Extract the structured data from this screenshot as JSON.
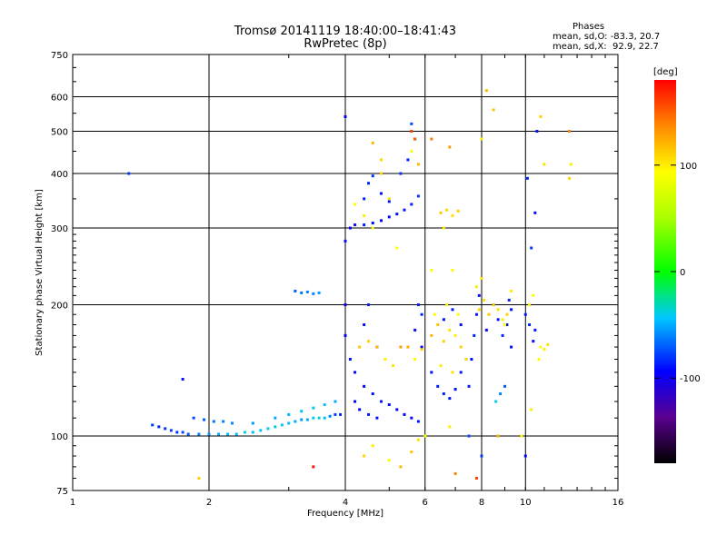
{
  "header": {
    "title": "Tromsø 20141119 18:40:00–18:41:43",
    "subtitle": "RwPretec (8p)"
  },
  "phase_stats": {
    "heading": "Phases",
    "line1": "mean, sd,O: -83.3, 20.7",
    "line2": "mean, sd,X:  92.9, 22.7"
  },
  "colorbar": {
    "unit": "[deg]",
    "ticks": [
      {
        "value": 100,
        "label": "100"
      },
      {
        "value": 0,
        "label": "0"
      },
      {
        "value": -100,
        "label": "-100"
      }
    ],
    "range": [
      -180,
      180
    ]
  },
  "chart_data": {
    "type": "scatter",
    "title": "Tromsø 20141119 18:40:00–18:41:43",
    "subtitle": "RwPretec (8p)",
    "xlabel": "Frequency [MHz]",
    "ylabel": "Stationary phase Virtual Height [km]",
    "xscale": "log",
    "yscale": "log",
    "xlim": [
      1,
      16
    ],
    "ylim": [
      75,
      750
    ],
    "xticks": [
      1,
      2,
      4,
      6,
      8,
      10,
      16
    ],
    "yticks": [
      75,
      100,
      200,
      300,
      400,
      500,
      600,
      750
    ],
    "grid": true,
    "colormap": "rainbow phase [deg]",
    "series": [
      {
        "name": "O",
        "points": [
          [
            1.5,
            106,
            -80
          ],
          [
            1.55,
            105,
            -85
          ],
          [
            1.6,
            104,
            -80
          ],
          [
            1.65,
            103,
            -78
          ],
          [
            1.7,
            102,
            -82
          ],
          [
            1.75,
            102,
            -75
          ],
          [
            1.8,
            101,
            -70
          ],
          [
            1.9,
            101,
            -60
          ],
          [
            2.0,
            101,
            -55
          ],
          [
            2.1,
            101,
            -50
          ],
          [
            2.2,
            101,
            -45
          ],
          [
            2.3,
            101,
            -45
          ],
          [
            2.4,
            102,
            -40
          ],
          [
            2.5,
            102,
            -45
          ],
          [
            2.6,
            103,
            -42
          ],
          [
            2.7,
            104,
            -38
          ],
          [
            2.8,
            105,
            -35
          ],
          [
            2.9,
            106,
            -40
          ],
          [
            3.0,
            107,
            -45
          ],
          [
            3.1,
            108,
            -50
          ],
          [
            3.2,
            109,
            -55
          ],
          [
            3.3,
            109,
            -50
          ],
          [
            3.4,
            110,
            -40
          ],
          [
            3.5,
            110,
            -35
          ],
          [
            3.6,
            110,
            -45
          ],
          [
            3.7,
            111,
            -60
          ],
          [
            3.8,
            112,
            -80
          ],
          [
            3.9,
            112,
            -85
          ],
          [
            1.85,
            110,
            -75
          ],
          [
            1.95,
            109,
            -70
          ],
          [
            2.05,
            108,
            -65
          ],
          [
            2.15,
            108,
            -60
          ],
          [
            2.25,
            107,
            -58
          ],
          [
            2.5,
            107,
            -55
          ],
          [
            2.8,
            110,
            -50
          ],
          [
            3.0,
            112,
            -48
          ],
          [
            3.2,
            114,
            -45
          ],
          [
            3.4,
            116,
            -42
          ],
          [
            3.6,
            118,
            -45
          ],
          [
            3.8,
            120,
            -50
          ],
          [
            3.1,
            215,
            -70
          ],
          [
            3.2,
            213,
            -65
          ],
          [
            3.3,
            214,
            -60
          ],
          [
            3.4,
            212,
            -60
          ],
          [
            3.5,
            213,
            -55
          ],
          [
            1.33,
            400,
            -80
          ],
          [
            1.75,
            135,
            -90
          ],
          [
            4.0,
            280,
            -90
          ],
          [
            4.1,
            300,
            -95
          ],
          [
            4.2,
            305,
            -90
          ],
          [
            4.4,
            305,
            -88
          ],
          [
            4.6,
            308,
            -92
          ],
          [
            4.8,
            312,
            -95
          ],
          [
            5.0,
            318,
            -92
          ],
          [
            5.2,
            323,
            -90
          ],
          [
            5.4,
            330,
            -88
          ],
          [
            5.6,
            340,
            -85
          ],
          [
            5.8,
            355,
            -80
          ],
          [
            4.4,
            350,
            -85
          ],
          [
            4.5,
            380,
            -85
          ],
          [
            4.6,
            395,
            -80
          ],
          [
            4.8,
            360,
            -90
          ],
          [
            5.0,
            345,
            -88
          ],
          [
            5.3,
            400,
            -82
          ],
          [
            5.5,
            430,
            -85
          ],
          [
            5.7,
            480,
            -80
          ],
          [
            5.6,
            520,
            -75
          ],
          [
            4.0,
            540,
            -95
          ],
          [
            4.0,
            200,
            -100
          ],
          [
            4.0,
            170,
            -95
          ],
          [
            4.1,
            150,
            -90
          ],
          [
            4.2,
            140,
            -92
          ],
          [
            4.4,
            130,
            -95
          ],
          [
            4.6,
            125,
            -90
          ],
          [
            4.8,
            120,
            -88
          ],
          [
            5.0,
            118,
            -90
          ],
          [
            5.2,
            115,
            -92
          ],
          [
            5.4,
            112,
            -95
          ],
          [
            5.6,
            110,
            -90
          ],
          [
            5.8,
            108,
            -88
          ],
          [
            4.4,
            180,
            -90
          ],
          [
            4.5,
            200,
            -85
          ],
          [
            4.7,
            160,
            -90
          ],
          [
            4.2,
            120,
            -95
          ],
          [
            4.3,
            115,
            -90
          ],
          [
            4.5,
            112,
            -88
          ],
          [
            4.7,
            110,
            -90
          ],
          [
            5.8,
            200,
            -88
          ],
          [
            5.9,
            190,
            -85
          ],
          [
            5.7,
            175,
            -90
          ],
          [
            5.9,
            160,
            -92
          ],
          [
            6.2,
            140,
            -90
          ],
          [
            6.4,
            130,
            -88
          ],
          [
            6.6,
            125,
            -85
          ],
          [
            6.8,
            122,
            -88
          ],
          [
            7.0,
            128,
            -90
          ],
          [
            7.2,
            140,
            -88
          ],
          [
            7.4,
            150,
            -85
          ],
          [
            6.6,
            185,
            -90
          ],
          [
            6.9,
            195,
            -88
          ],
          [
            7.2,
            180,
            -90
          ],
          [
            7.5,
            130,
            -88
          ],
          [
            7.6,
            150,
            -90
          ],
          [
            7.7,
            170,
            -85
          ],
          [
            7.8,
            190,
            -88
          ],
          [
            7.9,
            210,
            -90
          ],
          [
            8.2,
            175,
            -92
          ],
          [
            8.5,
            200,
            -90
          ],
          [
            8.7,
            185,
            -88
          ],
          [
            8.9,
            170,
            -85
          ],
          [
            9.1,
            180,
            -88
          ],
          [
            9.3,
            160,
            -90
          ],
          [
            9.0,
            130,
            -70
          ],
          [
            8.8,
            125,
            -60
          ],
          [
            8.6,
            120,
            -40
          ],
          [
            9.2,
            205,
            -85
          ],
          [
            9.3,
            195,
            -90
          ],
          [
            10.0,
            190,
            -88
          ],
          [
            10.2,
            180,
            -85
          ],
          [
            10.4,
            165,
            -90
          ],
          [
            10.5,
            175,
            -88
          ],
          [
            10.5,
            325,
            -90
          ],
          [
            10.6,
            500,
            -90
          ],
          [
            10.1,
            390,
            -85
          ],
          [
            10.3,
            270,
            -80
          ],
          [
            10.0,
            90,
            -95
          ],
          [
            8.0,
            90,
            -80
          ],
          [
            7.5,
            100,
            -75
          ]
        ]
      },
      {
        "name": "X",
        "points": [
          [
            4.2,
            340,
            95
          ],
          [
            4.4,
            320,
            100
          ],
          [
            4.6,
            300,
            90
          ],
          [
            4.8,
            400,
            110
          ],
          [
            5.0,
            350,
            105
          ],
          [
            5.2,
            270,
            90
          ],
          [
            5.6,
            450,
            95
          ],
          [
            5.8,
            420,
            120
          ],
          [
            4.3,
            160,
            115
          ],
          [
            4.5,
            165,
            110
          ],
          [
            4.7,
            160,
            120
          ],
          [
            4.9,
            150,
            100
          ],
          [
            5.1,
            145,
            105
          ],
          [
            5.3,
            160,
            130
          ],
          [
            5.5,
            160,
            125
          ],
          [
            5.7,
            150,
            95
          ],
          [
            5.9,
            158,
            110
          ],
          [
            6.5,
            325,
            115
          ],
          [
            6.7,
            330,
            110
          ],
          [
            6.9,
            320,
            105
          ],
          [
            7.1,
            328,
            110
          ],
          [
            6.6,
            300,
            100
          ],
          [
            6.2,
            240,
            90
          ],
          [
            6.9,
            240,
            95
          ],
          [
            6.2,
            170,
            120
          ],
          [
            6.4,
            180,
            115
          ],
          [
            6.6,
            165,
            110
          ],
          [
            6.8,
            175,
            105
          ],
          [
            7.0,
            170,
            100
          ],
          [
            7.2,
            160,
            110
          ],
          [
            7.4,
            150,
            105
          ],
          [
            6.3,
            190,
            95
          ],
          [
            6.7,
            200,
            100
          ],
          [
            7.1,
            190,
            95
          ],
          [
            6.5,
            145,
            100
          ],
          [
            6.9,
            140,
            105
          ],
          [
            7.9,
            195,
            110
          ],
          [
            8.1,
            205,
            105
          ],
          [
            8.3,
            190,
            115
          ],
          [
            8.5,
            200,
            110
          ],
          [
            8.7,
            195,
            105
          ],
          [
            8.9,
            185,
            100
          ],
          [
            9.1,
            190,
            110
          ],
          [
            7.8,
            220,
            100
          ],
          [
            8.0,
            230,
            105
          ],
          [
            9.3,
            215,
            100
          ],
          [
            9.0,
            180,
            95
          ],
          [
            10.8,
            160,
            95
          ],
          [
            11.0,
            158,
            100
          ],
          [
            11.2,
            162,
            105
          ],
          [
            10.7,
            150,
            95
          ],
          [
            10.2,
            200,
            100
          ],
          [
            10.4,
            210,
            90
          ],
          [
            10.8,
            540,
            110
          ],
          [
            11.0,
            420,
            105
          ],
          [
            12.5,
            390,
            110
          ],
          [
            12.6,
            420,
            100
          ],
          [
            12.5,
            500,
            140
          ],
          [
            8.2,
            620,
            120
          ],
          [
            8.5,
            560,
            115
          ],
          [
            8.0,
            480,
            100
          ],
          [
            5.6,
            500,
            160
          ],
          [
            5.7,
            480,
            150
          ],
          [
            6.2,
            480,
            140
          ],
          [
            6.8,
            460,
            130
          ],
          [
            4.6,
            470,
            120
          ],
          [
            4.8,
            430,
            110
          ],
          [
            4.4,
            90,
            110
          ],
          [
            4.6,
            95,
            100
          ],
          [
            5.0,
            88,
            95
          ],
          [
            5.3,
            85,
            120
          ],
          [
            5.6,
            92,
            115
          ],
          [
            5.8,
            98,
            105
          ],
          [
            6.0,
            100,
            90
          ],
          [
            6.8,
            105,
            100
          ],
          [
            7.0,
            82,
            140
          ],
          [
            7.8,
            80,
            160
          ],
          [
            8.7,
            100,
            120
          ],
          [
            1.9,
            80,
            110
          ],
          [
            3.4,
            85,
            175
          ],
          [
            9.8,
            100,
            95
          ],
          [
            10.3,
            115,
            100
          ]
        ]
      }
    ]
  }
}
